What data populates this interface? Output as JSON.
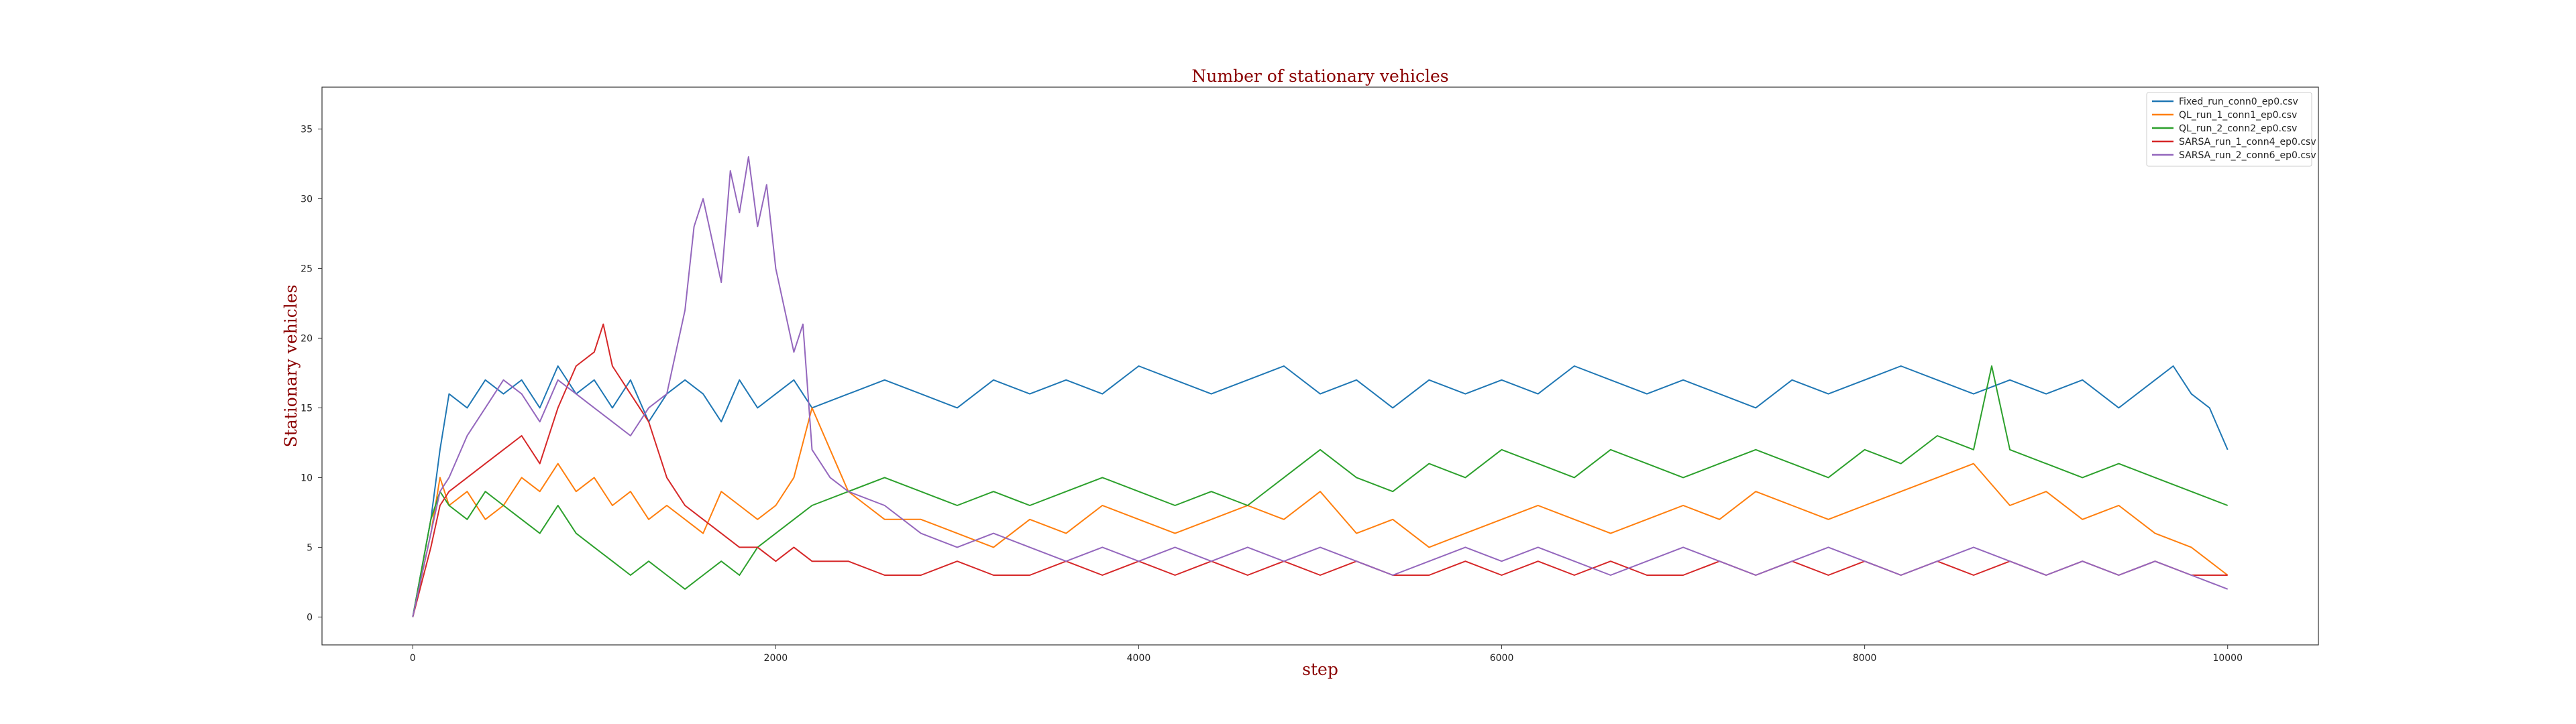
{
  "chart_data": {
    "type": "line",
    "title": "Number of stationary vehicles",
    "xlabel": "step",
    "ylabel": "Stationary vehicles",
    "xlim": [
      -500,
      10500
    ],
    "ylim": [
      -2,
      38
    ],
    "xticks": [
      0,
      2000,
      4000,
      6000,
      8000,
      10000
    ],
    "yticks": [
      0,
      5,
      10,
      15,
      20,
      25,
      30,
      35
    ],
    "grid": false,
    "legend_position": "top-right",
    "series": [
      {
        "name": "Fixed_run_conn0_ep0.csv",
        "color": "#1f77b4",
        "x": [
          0,
          100,
          150,
          200,
          300,
          400,
          500,
          600,
          700,
          800,
          900,
          1000,
          1100,
          1200,
          1300,
          1400,
          1500,
          1600,
          1700,
          1800,
          1900,
          2000,
          2100,
          2200,
          2400,
          2600,
          2800,
          3000,
          3200,
          3400,
          3600,
          3800,
          4000,
          4200,
          4400,
          4600,
          4800,
          5000,
          5200,
          5400,
          5600,
          5800,
          6000,
          6200,
          6400,
          6600,
          6800,
          7000,
          7200,
          7400,
          7600,
          7800,
          8000,
          8200,
          8400,
          8600,
          8800,
          9000,
          9200,
          9400,
          9600,
          9700,
          9800,
          9900,
          10000
        ],
        "y": [
          0,
          7,
          12,
          16,
          15,
          17,
          16,
          17,
          15,
          18,
          16,
          17,
          15,
          17,
          14,
          16,
          17,
          16,
          14,
          17,
          15,
          16,
          17,
          15,
          16,
          17,
          16,
          15,
          17,
          16,
          17,
          16,
          18,
          17,
          16,
          17,
          18,
          16,
          17,
          15,
          17,
          16,
          17,
          16,
          18,
          17,
          16,
          17,
          16,
          15,
          17,
          16,
          17,
          18,
          17,
          16,
          17,
          16,
          17,
          15,
          17,
          18,
          16,
          15,
          12
        ]
      },
      {
        "name": "QL_run_1_conn1_ep0.csv",
        "color": "#ff7f0e",
        "x": [
          0,
          100,
          150,
          200,
          300,
          400,
          500,
          600,
          700,
          800,
          900,
          1000,
          1100,
          1200,
          1300,
          1400,
          1500,
          1600,
          1700,
          1800,
          1900,
          2000,
          2100,
          2200,
          2300,
          2400,
          2500,
          2600,
          2800,
          3000,
          3200,
          3400,
          3600,
          3800,
          4000,
          4200,
          4400,
          4600,
          4800,
          5000,
          5200,
          5400,
          5600,
          5800,
          6000,
          6200,
          6400,
          6600,
          6800,
          7000,
          7200,
          7400,
          7600,
          7800,
          8000,
          8200,
          8400,
          8600,
          8800,
          9000,
          9200,
          9400,
          9600,
          9800,
          10000
        ],
        "y": [
          0,
          6,
          10,
          8,
          9,
          7,
          8,
          10,
          9,
          11,
          9,
          10,
          8,
          9,
          7,
          8,
          7,
          6,
          9,
          8,
          7,
          8,
          10,
          15,
          12,
          9,
          8,
          7,
          7,
          6,
          5,
          7,
          6,
          8,
          7,
          6,
          7,
          8,
          7,
          9,
          6,
          7,
          5,
          6,
          7,
          8,
          7,
          6,
          7,
          8,
          7,
          9,
          8,
          7,
          8,
          9,
          10,
          11,
          8,
          9,
          7,
          8,
          6,
          5,
          3
        ]
      },
      {
        "name": "QL_run_2_conn2_ep0.csv",
        "color": "#2ca02c",
        "x": [
          0,
          100,
          150,
          200,
          300,
          400,
          500,
          600,
          700,
          800,
          900,
          1000,
          1100,
          1200,
          1300,
          1400,
          1500,
          1600,
          1700,
          1800,
          1900,
          2000,
          2100,
          2200,
          2400,
          2600,
          2800,
          3000,
          3200,
          3400,
          3600,
          3800,
          4000,
          4200,
          4400,
          4600,
          4800,
          5000,
          5200,
          5400,
          5600,
          5800,
          6000,
          6200,
          6400,
          6600,
          6800,
          7000,
          7200,
          7400,
          7600,
          7800,
          8000,
          8200,
          8400,
          8600,
          8700,
          8800,
          9000,
          9200,
          9400,
          9600,
          9800,
          10000
        ],
        "y": [
          0,
          7,
          9,
          8,
          7,
          9,
          8,
          7,
          6,
          8,
          6,
          5,
          4,
          3,
          4,
          3,
          2,
          3,
          4,
          3,
          5,
          6,
          7,
          8,
          9,
          10,
          9,
          8,
          9,
          8,
          9,
          10,
          9,
          8,
          9,
          8,
          10,
          12,
          10,
          9,
          11,
          10,
          12,
          11,
          10,
          12,
          11,
          10,
          11,
          12,
          11,
          10,
          12,
          11,
          13,
          12,
          18,
          12,
          11,
          10,
          11,
          10,
          9,
          8
        ]
      },
      {
        "name": "SARSA_run_1_conn4_ep0.csv",
        "color": "#d62728",
        "x": [
          0,
          100,
          150,
          200,
          300,
          400,
          500,
          600,
          700,
          800,
          900,
          1000,
          1050,
          1100,
          1200,
          1300,
          1400,
          1500,
          1600,
          1700,
          1800,
          1900,
          2000,
          2100,
          2200,
          2400,
          2600,
          2800,
          3000,
          3200,
          3400,
          3600,
          3800,
          4000,
          4200,
          4400,
          4600,
          4800,
          5000,
          5200,
          5400,
          5600,
          5800,
          6000,
          6200,
          6400,
          6600,
          6800,
          7000,
          7200,
          7400,
          7600,
          7800,
          8000,
          8200,
          8400,
          8600,
          8800,
          9000,
          9200,
          9400,
          9600,
          9800,
          10000
        ],
        "y": [
          0,
          5,
          8,
          9,
          10,
          11,
          12,
          13,
          11,
          15,
          18,
          19,
          21,
          18,
          16,
          14,
          10,
          8,
          7,
          6,
          5,
          5,
          4,
          5,
          4,
          4,
          3,
          3,
          4,
          3,
          3,
          4,
          3,
          4,
          3,
          4,
          3,
          4,
          3,
          4,
          3,
          3,
          4,
          3,
          4,
          3,
          4,
          3,
          3,
          4,
          3,
          4,
          3,
          4,
          3,
          4,
          3,
          4,
          3,
          4,
          3,
          4,
          3,
          3
        ]
      },
      {
        "name": "SARSA_run_2_conn6_ep0.csv",
        "color": "#9467bd",
        "x": [
          0,
          100,
          150,
          200,
          300,
          400,
          500,
          600,
          700,
          800,
          900,
          1000,
          1100,
          1200,
          1300,
          1400,
          1500,
          1550,
          1600,
          1650,
          1700,
          1750,
          1800,
          1850,
          1900,
          1950,
          2000,
          2050,
          2100,
          2150,
          2200,
          2300,
          2400,
          2600,
          2800,
          3000,
          3200,
          3400,
          3600,
          3800,
          4000,
          4200,
          4400,
          4600,
          4800,
          5000,
          5200,
          5400,
          5600,
          5800,
          6000,
          6200,
          6400,
          6600,
          6800,
          7000,
          7200,
          7400,
          7600,
          7800,
          8000,
          8200,
          8400,
          8600,
          8800,
          9000,
          9200,
          9400,
          9600,
          9800,
          10000
        ],
        "y": [
          0,
          6,
          9,
          10,
          13,
          15,
          17,
          16,
          14,
          17,
          16,
          15,
          14,
          13,
          15,
          16,
          22,
          28,
          30,
          27,
          24,
          32,
          29,
          33,
          28,
          31,
          25,
          22,
          19,
          21,
          12,
          10,
          9,
          8,
          6,
          5,
          6,
          5,
          4,
          5,
          4,
          5,
          4,
          5,
          4,
          5,
          4,
          3,
          4,
          5,
          4,
          5,
          4,
          3,
          4,
          5,
          4,
          3,
          4,
          5,
          4,
          3,
          4,
          5,
          4,
          3,
          4,
          3,
          4,
          3,
          2
        ]
      }
    ]
  }
}
